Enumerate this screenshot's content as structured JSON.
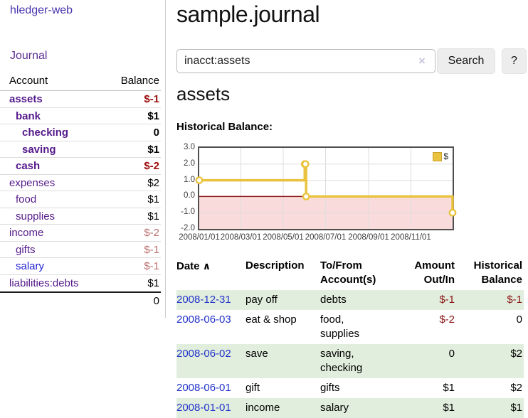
{
  "brand": "hledger-web",
  "nav": {
    "journal": "Journal"
  },
  "sidebar": {
    "header": {
      "account": "Account",
      "balance": "Balance"
    },
    "accounts": [
      {
        "name": "assets",
        "depth": 1,
        "bold": true,
        "balance": "$-1",
        "balance_style": "neg-strong",
        "link_color": "purple"
      },
      {
        "name": "bank",
        "depth": 2,
        "bold": true,
        "balance": "$1",
        "balance_style": "pos",
        "link_color": "purple"
      },
      {
        "name": "checking",
        "depth": 3,
        "bold": true,
        "balance": "0",
        "balance_style": "pos",
        "link_color": "purple"
      },
      {
        "name": "saving",
        "depth": 3,
        "bold": true,
        "balance": "$1",
        "balance_style": "pos",
        "link_color": "purple"
      },
      {
        "name": "cash",
        "depth": 2,
        "bold": true,
        "balance": "$-2",
        "balance_style": "neg-strong",
        "link_color": "purple"
      },
      {
        "name": "expenses",
        "depth": 1,
        "bold": false,
        "balance": "$2",
        "balance_style": "pos",
        "link_color": "purple"
      },
      {
        "name": "food",
        "depth": 2,
        "bold": false,
        "balance": "$1",
        "balance_style": "pos",
        "link_color": "purple"
      },
      {
        "name": "supplies",
        "depth": 2,
        "bold": false,
        "balance": "$1",
        "balance_style": "pos",
        "link_color": "purple"
      },
      {
        "name": "income",
        "depth": 1,
        "bold": false,
        "balance": "$-2",
        "balance_style": "neg-soft",
        "link_color": "purple"
      },
      {
        "name": "gifts",
        "depth": 2,
        "bold": false,
        "balance": "$-1",
        "balance_style": "neg-soft",
        "link_color": "purple"
      },
      {
        "name": "salary",
        "depth": 2,
        "bold": false,
        "balance": "$-1",
        "balance_style": "neg-soft",
        "link_color": "blue"
      },
      {
        "name": "liabilities:debts",
        "depth": 1,
        "bold": false,
        "balance": "$1",
        "balance_style": "pos",
        "link_color": "purple"
      }
    ],
    "total": "0"
  },
  "header": {
    "title": "sample.journal"
  },
  "search": {
    "value": "inacct:assets",
    "clear_icon": "×",
    "button_label": "Search",
    "help_label": "?"
  },
  "account_page": {
    "heading": "assets",
    "chart_label": "Historical Balance:"
  },
  "chart_data": {
    "type": "line",
    "step": true,
    "title": "Historical Balance:",
    "x": [
      "2008-01-01",
      "2008-06-01",
      "2008-06-02",
      "2008-06-03",
      "2008-12-31"
    ],
    "series": [
      {
        "name": "$",
        "values": [
          1,
          2,
          2,
          0,
          -1
        ]
      }
    ],
    "x_range": [
      "2008-01-01",
      "2008-12-31"
    ],
    "ylim": [
      -2,
      3
    ],
    "y_tick_values": [
      3,
      2,
      1,
      0,
      -1,
      -2
    ],
    "y_tick_labels": [
      "3.0",
      "2.0",
      "1.0",
      "0.0",
      "-1.0",
      "-2.0"
    ],
    "x_tick_labels": [
      "2008/01/01",
      "2008/03/01",
      "2008/05/01",
      "2008/07/01",
      "2008/09/01",
      "2008/11/01"
    ],
    "grid": true,
    "legend_position": "top-right",
    "legend": [
      {
        "label": "$",
        "color": "#e9c340"
      }
    ],
    "line_color": "#e9c340",
    "marker": "open-circle",
    "zero_line_color": "#8b1a1a",
    "negative_region_color": "#fadbdb"
  },
  "register_table": {
    "sort_icon": "∧",
    "columns": {
      "date": "Date",
      "description": "Description",
      "accounts": "To/From Account(s)",
      "amount": "Amount Out/In",
      "balance": "Historical Balance"
    },
    "rows": [
      {
        "date": "2008-12-31",
        "description": "pay off",
        "accounts": "debts",
        "amount": "$-1",
        "amount_neg": true,
        "balance": "$-1",
        "balance_neg": true,
        "shaded": true
      },
      {
        "date": "2008-06-03",
        "description": "eat & shop",
        "accounts": "food, supplies",
        "amount": "$-2",
        "amount_neg": true,
        "balance": "0",
        "balance_neg": false,
        "shaded": false
      },
      {
        "date": "2008-06-02",
        "description": "save",
        "accounts": "saving, checking",
        "amount": "0",
        "amount_neg": false,
        "balance": "$2",
        "balance_neg": false,
        "shaded": true
      },
      {
        "date": "2008-06-01",
        "description": "gift",
        "accounts": "gifts",
        "amount": "$1",
        "amount_neg": false,
        "balance": "$2",
        "balance_neg": false,
        "shaded": false
      },
      {
        "date": "2008-01-01",
        "description": "income",
        "accounts": "salary",
        "amount": "$1",
        "amount_neg": false,
        "balance": "$1",
        "balance_neg": false,
        "shaded": true
      }
    ]
  }
}
